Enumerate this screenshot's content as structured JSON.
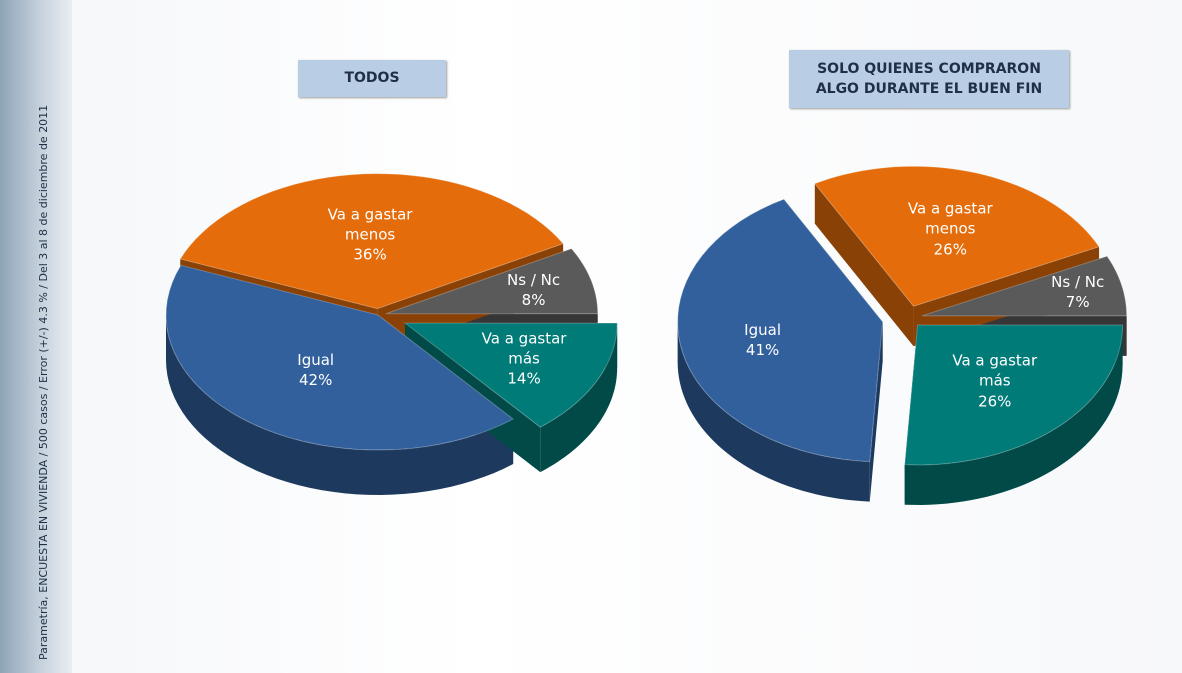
{
  "source": "Parametría, ENCUESTA EN VIVIENDA / 500 casos / Error (+/-) 4.3 % / Del 3 al 8 de diciembre de 2011",
  "chart_data": [
    {
      "type": "pie",
      "title": "TODOS",
      "categories": [
        "Ns / Nc",
        "Va a gastar menos",
        "Igual",
        "Va a gastar más"
      ],
      "values": [
        8,
        36,
        42,
        14
      ],
      "value_labels": [
        "8%",
        "36%",
        "42%",
        "14%"
      ],
      "colors": [
        "#5a5a5a",
        "#e46c0a",
        "#31609c",
        "#017b78"
      ]
    },
    {
      "type": "pie",
      "title": "SOLO QUIENES COMPRARON ALGO DURANTE EL BUEN FIN",
      "categories": [
        "Ns / Nc",
        "Va a gastar menos",
        "Igual",
        "Va a gastar más"
      ],
      "values": [
        7,
        26,
        41,
        26
      ],
      "value_labels": [
        "7%",
        "26%",
        "41%",
        "26%"
      ],
      "colors": [
        "#5a5a5a",
        "#e46c0a",
        "#31609c",
        "#017b78"
      ]
    }
  ]
}
